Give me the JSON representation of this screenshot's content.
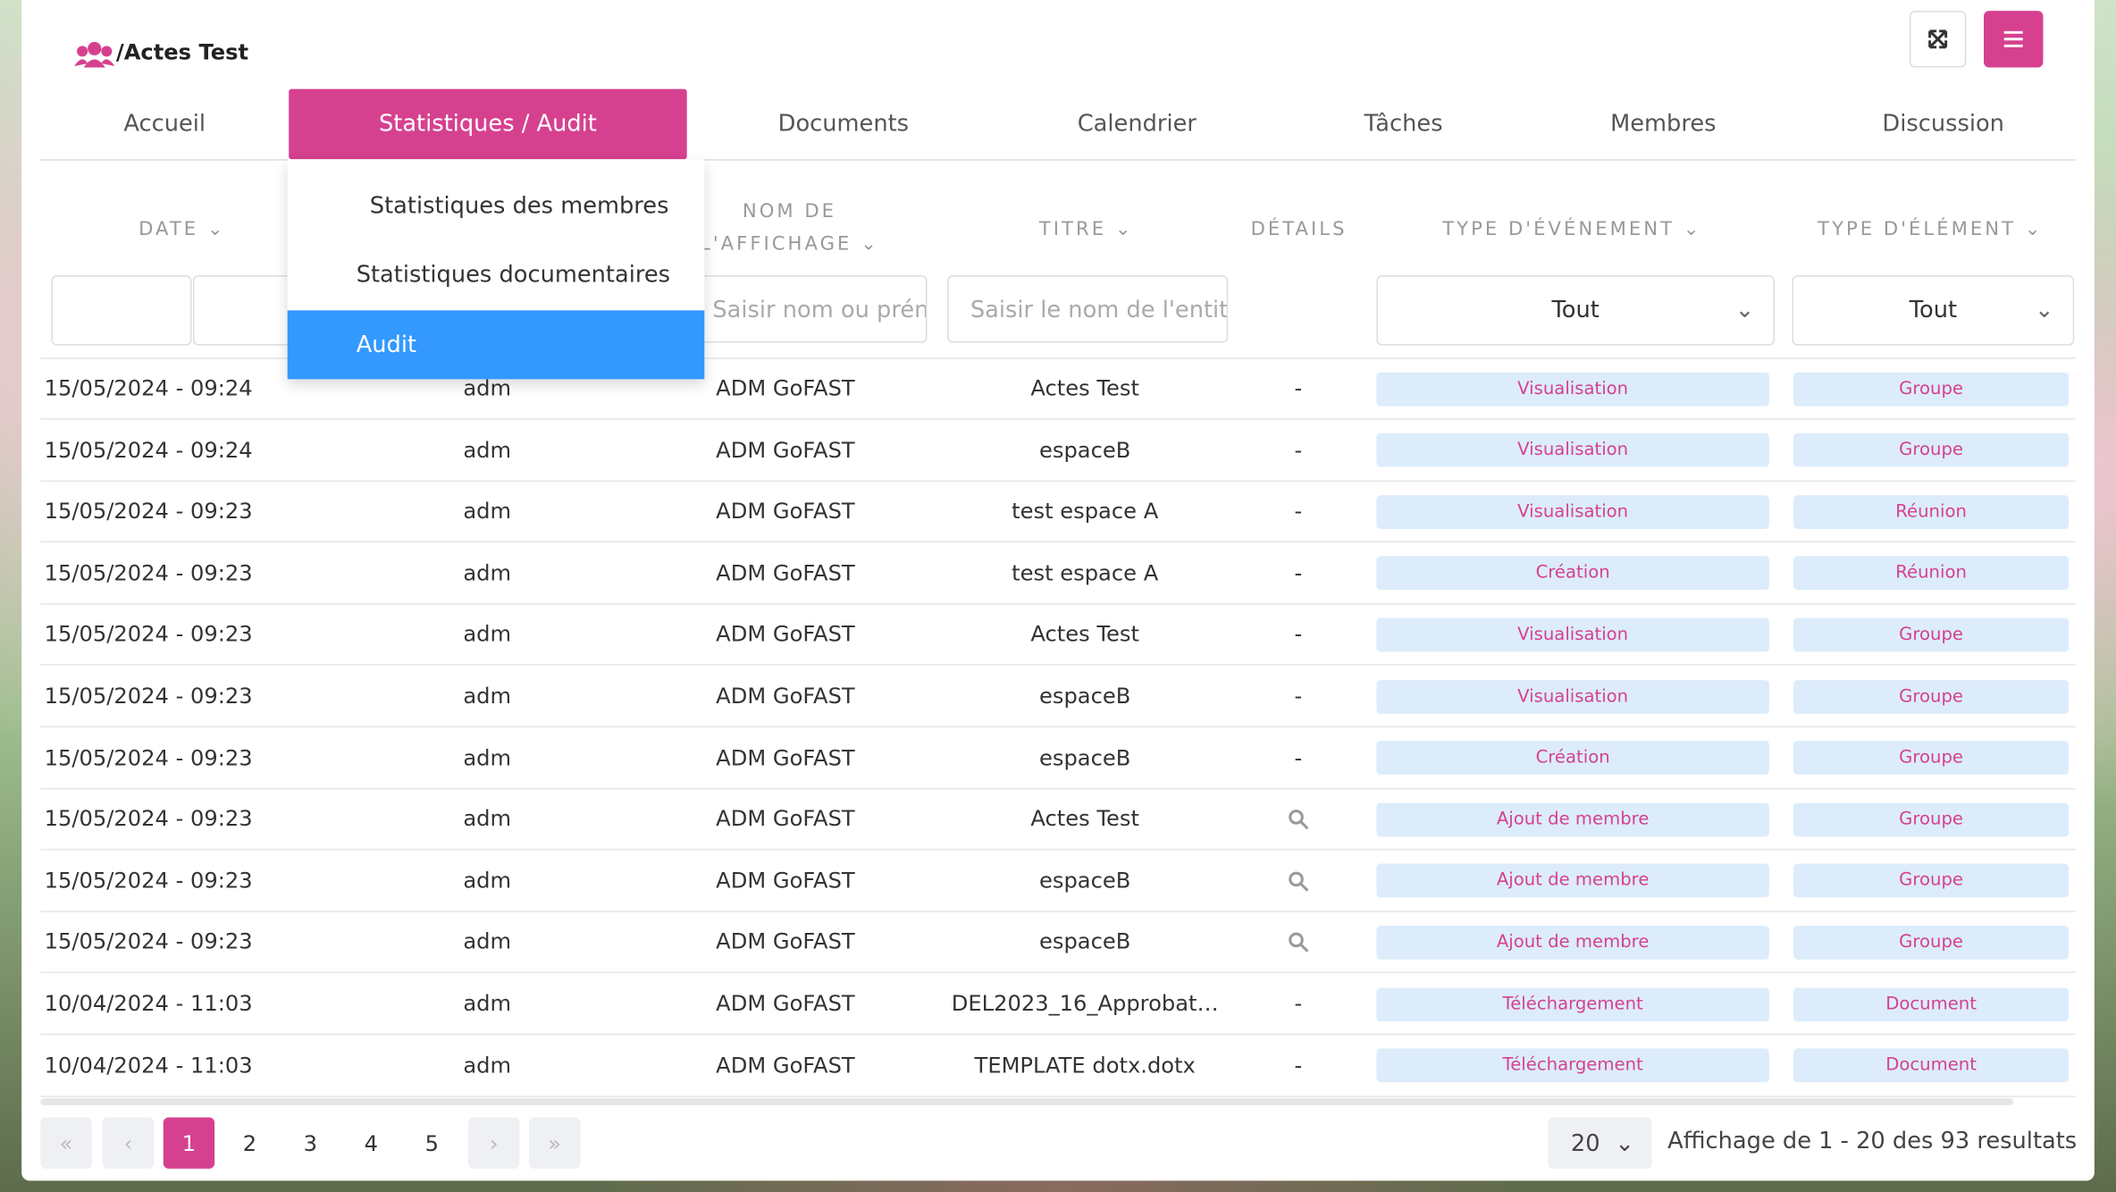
{
  "header": {
    "title": "Actes Test"
  },
  "tabs": [
    "Accueil",
    "Statistiques / Audit",
    "Documents",
    "Calendrier",
    "Tâches",
    "Membres",
    "Discussion"
  ],
  "active_tab": 1,
  "dropdown": {
    "items": [
      "Statistiques des membres",
      "Statistiques documentaires",
      "Audit"
    ],
    "selected": 2
  },
  "table": {
    "headers": [
      "Date",
      "",
      "Nom de l'affichage",
      "Titre",
      "Détails",
      "Type d'événement",
      "Type d'élément"
    ],
    "filters": {
      "name_placeholder": "Saisir nom ou prénom",
      "title_placeholder": "Saisir le nom de l'entité",
      "event_select": "Tout",
      "element_select": "Tout"
    },
    "rows": [
      [
        "15/05/2024 - 09:24",
        "adm",
        "ADM GoFAST",
        "Actes Test",
        "-",
        "Visualisation",
        "Groupe"
      ],
      [
        "15/05/2024 - 09:24",
        "adm",
        "ADM GoFAST",
        "espaceB",
        "-",
        "Visualisation",
        "Groupe"
      ],
      [
        "15/05/2024 - 09:23",
        "adm",
        "ADM GoFAST",
        "test espace A",
        "-",
        "Visualisation",
        "Réunion"
      ],
      [
        "15/05/2024 - 09:23",
        "adm",
        "ADM GoFAST",
        "test espace A",
        "-",
        "Création",
        "Réunion"
      ],
      [
        "15/05/2024 - 09:23",
        "adm",
        "ADM GoFAST",
        "Actes Test",
        "-",
        "Visualisation",
        "Groupe"
      ],
      [
        "15/05/2024 - 09:23",
        "adm",
        "ADM GoFAST",
        "espaceB",
        "-",
        "Visualisation",
        "Groupe"
      ],
      [
        "15/05/2024 - 09:23",
        "adm",
        "ADM GoFAST",
        "espaceB",
        "-",
        "Création",
        "Groupe"
      ],
      [
        "15/05/2024 - 09:23",
        "adm",
        "ADM GoFAST",
        "Actes Test",
        null,
        "Ajout de membre",
        "Groupe"
      ],
      [
        "15/05/2024 - 09:23",
        "adm",
        "ADM GoFAST",
        "espaceB",
        null,
        "Ajout de membre",
        "Groupe"
      ],
      [
        "15/05/2024 - 09:23",
        "adm",
        "ADM GoFAST",
        "espaceB",
        null,
        "Ajout de membre",
        "Groupe"
      ],
      [
        "10/04/2024 - 11:03",
        "adm",
        "ADM GoFAST",
        "DEL2023_16_Approbat…",
        "-",
        "Téléchargement",
        "Document"
      ],
      [
        "10/04/2024 - 11:03",
        "adm",
        "ADM GoFAST",
        "TEMPLATE dotx.dotx",
        "-",
        "Téléchargement",
        "Document"
      ]
    ]
  },
  "pagination": {
    "pages": [
      1,
      2,
      3,
      4,
      5
    ],
    "current": 1,
    "page_size": 20,
    "summary": "Affichage de 1 - 20 des 93 resultats"
  }
}
